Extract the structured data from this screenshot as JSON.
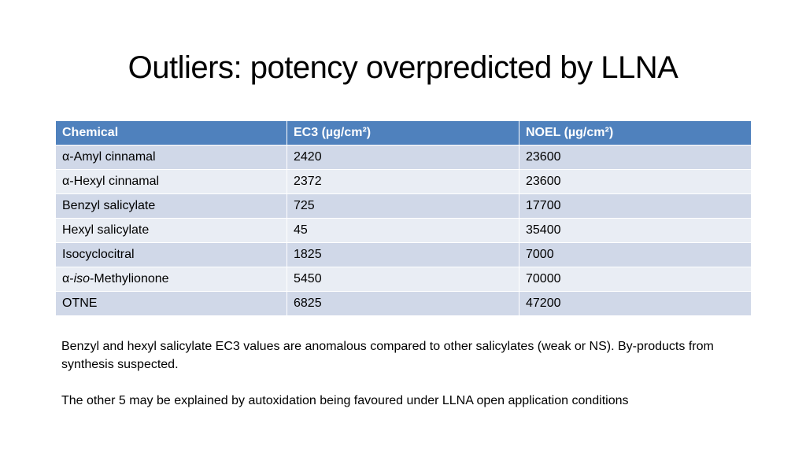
{
  "slide": {
    "title": "Outliers: potency overpredicted by LLNA"
  },
  "table": {
    "headers": [
      "Chemical",
      "EC3 (µg/cm²)",
      "NOEL (µg/cm²)"
    ],
    "rows": [
      {
        "chemical": "α-Amyl cinnamal",
        "ec3": "2420",
        "noel": "23600"
      },
      {
        "chemical": "α-Hexyl cinnamal",
        "ec3": "2372",
        "noel": "23600"
      },
      {
        "chemical": "Benzyl salicylate",
        "ec3": "725",
        "noel": "17700"
      },
      {
        "chemical": "Hexyl salicylate",
        "ec3": "45",
        "noel": "35400"
      },
      {
        "chemical": "Isocyclocitral",
        "ec3": "1825",
        "noel": "7000"
      },
      {
        "chemical_prefix": "α-",
        "chemical_italic": "iso",
        "chemical_suffix": "-Methylionone",
        "ec3": "5450",
        "noel": "70000"
      },
      {
        "chemical": "OTNE",
        "ec3": "6825",
        "noel": "47200"
      }
    ]
  },
  "notes": {
    "note_1": "Benzyl and hexyl salicylate EC3 values are anomalous compared to other salicylates (weak or NS). By-products from synthesis suspected.",
    "note_2": "The other 5 may be explained by autoxidation being favoured under LLNA open application conditions"
  },
  "colors": {
    "header_bg": "#4f81bd",
    "row_odd_bg": "#d0d8e8",
    "row_even_bg": "#e9edf4"
  }
}
